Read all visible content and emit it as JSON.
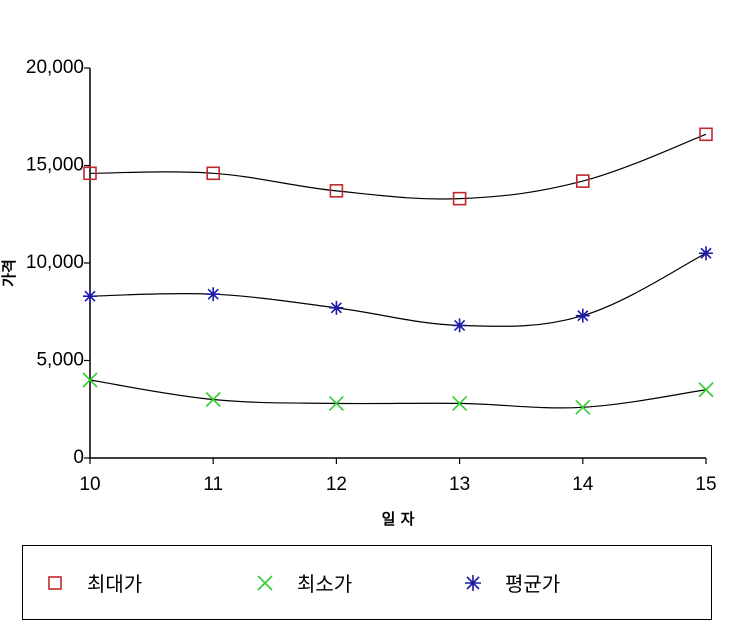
{
  "chart_data": {
    "type": "line",
    "x": [
      10,
      11,
      12,
      13,
      14,
      15
    ],
    "xlabel": "일  자",
    "ylabel": "가격",
    "ylim": [
      0,
      20000
    ],
    "yticks": [
      "0",
      "5,000",
      "10,000",
      "15,000",
      "20,000"
    ],
    "series": [
      {
        "name": "최대가",
        "marker": "square",
        "color": "#c0282d",
        "values": [
          14600,
          14600,
          13700,
          13300,
          14200,
          16600
        ]
      },
      {
        "name": "최소가",
        "marker": "x",
        "color": "#33cc33",
        "values": [
          4000,
          3000,
          2800,
          2800,
          2600,
          3500
        ]
      },
      {
        "name": "평균가",
        "marker": "asterisk",
        "color": "#1a1aa6",
        "values": [
          8300,
          8400,
          7700,
          6800,
          7300,
          10500
        ]
      }
    ],
    "legend_position": "bottom"
  }
}
